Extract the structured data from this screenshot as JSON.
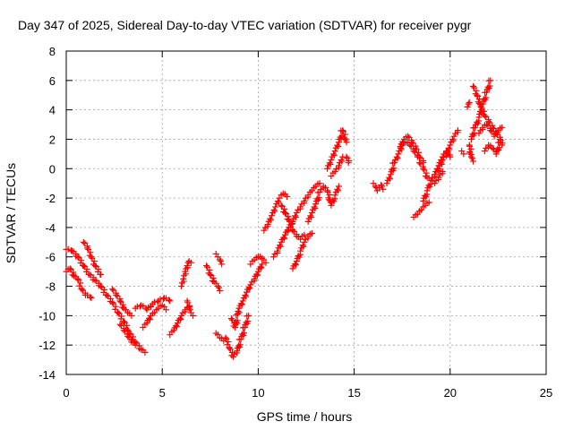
{
  "chart_data": {
    "type": "scatter",
    "title": "Day 347 of 2025, Sidereal Day-to-day VTEC variation (SDTVAR) for receiver pygr",
    "xlabel": "GPS time / hours",
    "ylabel": "SDTVAR / TECUs",
    "xlim": [
      0,
      25
    ],
    "ylim": [
      -14,
      8
    ],
    "x_ticks": [
      0,
      5,
      10,
      15,
      20,
      25
    ],
    "y_ticks": [
      -14,
      -12,
      -10,
      -8,
      -6,
      -4,
      -2,
      0,
      2,
      4,
      6,
      8
    ],
    "grid": true,
    "marker": "+",
    "marker_color": "#ff0000",
    "segments": [
      {
        "x": [
          0.0,
          0.3,
          0.6,
          0.9,
          1.2,
          1.5,
          1.8,
          2.1,
          2.4,
          2.7,
          3.0,
          3.3,
          3.6,
          3.9,
          4.1
        ],
        "y": [
          -5.5,
          -5.6,
          -6.0,
          -6.6,
          -7.2,
          -7.6,
          -8.0,
          -8.6,
          -9.1,
          -9.8,
          -10.4,
          -11.2,
          -11.8,
          -12.3,
          -12.5
        ]
      },
      {
        "x": [
          0.0,
          0.2,
          0.4,
          0.6,
          0.8,
          1.0,
          1.3
        ],
        "y": [
          -7.0,
          -6.8,
          -7.3,
          -7.5,
          -8.2,
          -8.6,
          -8.8
        ]
      },
      {
        "x": [
          0.9,
          1.1,
          1.3,
          1.5,
          1.8
        ],
        "y": [
          -5.0,
          -5.4,
          -6.0,
          -6.6,
          -7.2
        ]
      },
      {
        "x": [
          2.4,
          2.6,
          2.8,
          3.0,
          3.2,
          3.4
        ],
        "y": [
          -8.2,
          -8.6,
          -9.0,
          -9.5,
          -9.8,
          -10.0
        ]
      },
      {
        "x": [
          2.8,
          3.0,
          3.2,
          3.4,
          3.6
        ],
        "y": [
          -10.6,
          -11.0,
          -11.4,
          -11.8,
          -12.0
        ]
      },
      {
        "x": [
          3.6,
          3.9,
          4.2,
          4.5,
          4.8,
          5.1,
          5.4
        ],
        "y": [
          -9.5,
          -9.3,
          -9.6,
          -9.2,
          -9.0,
          -8.8,
          -9.0
        ]
      },
      {
        "x": [
          4.0,
          4.2,
          4.4,
          4.6,
          4.8,
          5.0,
          5.2
        ],
        "y": [
          -10.8,
          -10.5,
          -10.0,
          -9.8,
          -9.5,
          -9.3,
          -9.6
        ]
      },
      {
        "x": [
          5.4,
          5.6,
          5.8,
          6.0,
          6.2,
          6.4
        ],
        "y": [
          -11.3,
          -11.0,
          -10.5,
          -10.0,
          -9.6,
          -9.4
        ]
      },
      {
        "x": [
          6.0,
          6.1,
          6.2,
          6.3,
          6.4,
          6.5
        ],
        "y": [
          -8.0,
          -7.5,
          -7.0,
          -6.6,
          -6.3,
          -6.4
        ]
      },
      {
        "x": [
          6.3,
          6.4,
          6.5,
          6.6
        ],
        "y": [
          -9.0,
          -9.5,
          -9.8,
          -10.0
        ]
      },
      {
        "x": [
          7.3,
          7.5,
          7.7,
          7.9,
          8.0
        ],
        "y": [
          -6.6,
          -7.2,
          -7.7,
          -8.0,
          -8.3
        ]
      },
      {
        "x": [
          7.8,
          7.9,
          8.0,
          8.1
        ],
        "y": [
          -5.8,
          -6.0,
          -6.2,
          -6.5
        ]
      },
      {
        "x": [
          7.8,
          8.0,
          8.2
        ],
        "y": [
          -11.2,
          -11.5,
          -11.7
        ]
      },
      {
        "x": [
          8.3,
          8.5,
          8.7,
          8.9,
          9.1,
          9.3,
          9.5
        ],
        "y": [
          -11.5,
          -12.2,
          -12.8,
          -12.4,
          -11.6,
          -10.8,
          -10.0
        ]
      },
      {
        "x": [
          8.6,
          8.8,
          9.0,
          9.2,
          9.4,
          9.6,
          9.8,
          10.0,
          10.2
        ],
        "y": [
          -10.2,
          -10.8,
          -9.5,
          -9.0,
          -8.4,
          -7.9,
          -7.5,
          -7.0,
          -6.5
        ]
      },
      {
        "x": [
          9.6,
          9.8,
          10.0,
          10.2,
          10.4
        ],
        "y": [
          -6.5,
          -6.2,
          -6.0,
          -6.1,
          -6.4
        ]
      },
      {
        "x": [
          10.3,
          10.5,
          10.7,
          10.9,
          11.1,
          11.3,
          11.5
        ],
        "y": [
          -4.2,
          -3.8,
          -3.2,
          -2.6,
          -2.0,
          -1.7,
          -1.9
        ]
      },
      {
        "x": [
          11.2,
          11.4,
          11.6,
          11.8,
          12.0,
          12.2,
          12.4
        ],
        "y": [
          -2.5,
          -3.0,
          -3.5,
          -4.2,
          -4.6,
          -4.8,
          -4.5
        ]
      },
      {
        "x": [
          10.8,
          11.0,
          11.2,
          11.4,
          11.6,
          11.8,
          12.0,
          12.2,
          12.4,
          12.6,
          12.8,
          13.0,
          13.2
        ],
        "y": [
          -6.0,
          -5.6,
          -5.0,
          -4.5,
          -4.0,
          -3.6,
          -3.0,
          -2.6,
          -2.2,
          -1.8,
          -1.5,
          -1.2,
          -1.0
        ]
      },
      {
        "x": [
          11.8,
          12.0,
          12.2,
          12.4,
          12.6,
          12.8
        ],
        "y": [
          -6.8,
          -6.3,
          -5.6,
          -5.0,
          -4.6,
          -4.4
        ]
      },
      {
        "x": [
          12.6,
          12.8,
          13.0,
          13.2,
          13.4,
          13.6,
          13.8,
          14.0,
          14.2
        ],
        "y": [
          -3.6,
          -3.0,
          -2.4,
          -1.6,
          -1.2,
          -1.5,
          -2.5,
          -1.8,
          -1.2
        ]
      },
      {
        "x": [
          13.6,
          13.8,
          14.0,
          14.2,
          14.4,
          14.6
        ],
        "y": [
          0.0,
          0.6,
          1.2,
          1.8,
          2.6,
          1.8
        ]
      },
      {
        "x": [
          13.8,
          14.0,
          14.2,
          14.4
        ],
        "y": [
          -0.5,
          -0.2,
          0.2,
          0.8
        ]
      },
      {
        "x": [
          14.6,
          14.7
        ],
        "y": [
          0.8,
          0.4
        ]
      },
      {
        "x": [
          16.0,
          16.1,
          16.2,
          16.3,
          16.4,
          16.5
        ],
        "y": [
          -1.0,
          -1.2,
          -1.5,
          -1.3,
          -1.1,
          -1.4
        ]
      },
      {
        "x": [
          16.7,
          16.9,
          17.1,
          17.3,
          17.5,
          17.7,
          17.9,
          18.1,
          18.3
        ],
        "y": [
          -1.0,
          -0.4,
          0.4,
          1.0,
          1.6,
          1.8,
          1.6,
          1.2,
          0.8
        ]
      },
      {
        "x": [
          17.4,
          17.6,
          17.8,
          18.0,
          18.2,
          18.4,
          18.6
        ],
        "y": [
          1.5,
          2.0,
          2.2,
          1.8,
          1.4,
          0.8,
          0.4
        ]
      },
      {
        "x": [
          18.1,
          18.3,
          18.5,
          18.7,
          18.9
        ],
        "y": [
          -3.3,
          -3.1,
          -2.8,
          -2.5,
          -2.3
        ]
      },
      {
        "x": [
          18.6,
          18.8,
          19.0,
          19.2,
          19.4,
          19.6,
          19.8,
          20.0,
          20.2,
          20.4
        ],
        "y": [
          -2.2,
          -1.5,
          -0.8,
          -0.4,
          0.0,
          0.6,
          1.0,
          1.6,
          2.2,
          2.6
        ]
      },
      {
        "x": [
          18.4,
          18.6,
          18.8,
          19.0,
          19.2,
          19.4,
          19.6
        ],
        "y": [
          0.4,
          0.0,
          -0.6,
          -0.8,
          -1.0,
          -0.6,
          -0.2
        ]
      },
      {
        "x": [
          19.2,
          19.4,
          19.6,
          19.8,
          20.0
        ],
        "y": [
          -0.4,
          0.2,
          0.8,
          1.2,
          0.8
        ]
      },
      {
        "x": [
          20.6,
          20.7
        ],
        "y": [
          1.2,
          1.0
        ]
      },
      {
        "x": [
          20.9,
          21.0
        ],
        "y": [
          4.2,
          4.5
        ]
      },
      {
        "x": [
          21.0,
          21.1,
          21.2
        ],
        "y": [
          1.6,
          0.8,
          0.5
        ]
      },
      {
        "x": [
          21.1,
          21.3,
          21.5,
          21.7,
          21.9,
          22.1
        ],
        "y": [
          2.0,
          2.8,
          3.5,
          4.4,
          5.2,
          6.0
        ]
      },
      {
        "x": [
          21.2,
          21.4,
          21.6,
          21.8,
          22.0,
          22.2,
          22.4,
          22.6,
          22.7
        ],
        "y": [
          5.6,
          5.0,
          4.2,
          3.6,
          3.2,
          2.8,
          2.4,
          2.0,
          1.6
        ]
      },
      {
        "x": [
          21.5,
          21.7,
          21.9,
          22.1,
          22.3,
          22.5,
          22.7
        ],
        "y": [
          2.4,
          2.8,
          3.0,
          2.6,
          2.2,
          2.6,
          2.8
        ]
      },
      {
        "x": [
          21.8,
          22.0,
          22.2,
          22.4,
          22.6
        ],
        "y": [
          1.2,
          1.6,
          1.4,
          1.0,
          1.8
        ]
      }
    ]
  }
}
